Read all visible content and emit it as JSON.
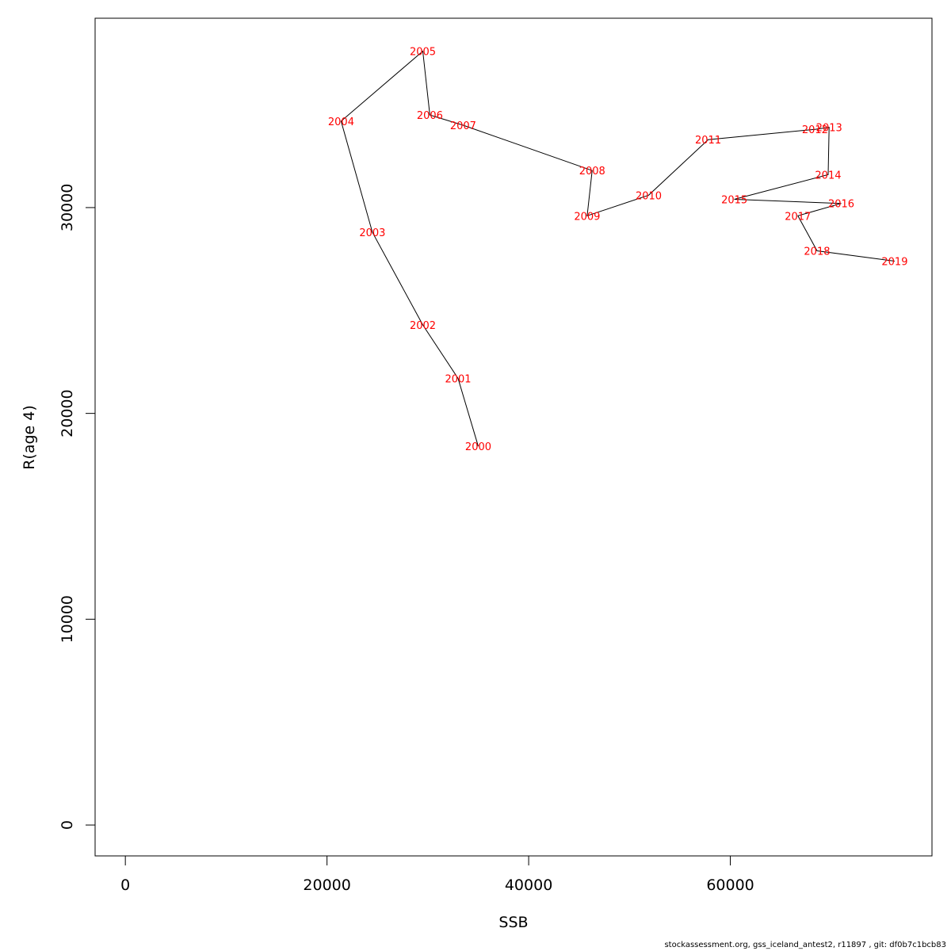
{
  "chart_data": {
    "type": "line",
    "title": "",
    "xlabel": "SSB",
    "ylabel": "R(age 4)",
    "xlim": [
      -3000,
      80000
    ],
    "ylim": [
      -1500,
      39200
    ],
    "x_ticks": [
      0,
      20000,
      40000,
      60000
    ],
    "x_tick_labels": [
      "0",
      "20000",
      "40000",
      "60000"
    ],
    "y_ticks": [
      0,
      10000,
      20000,
      30000
    ],
    "y_tick_labels": [
      "0",
      "10000",
      "20000",
      "30000"
    ],
    "grid": false,
    "legend": "none",
    "line_color": "#000000",
    "label_color": "#ff0000",
    "points": [
      {
        "label": "2000",
        "x": 35000,
        "y": 18400
      },
      {
        "label": "2001",
        "x": 33000,
        "y": 21700
      },
      {
        "label": "2002",
        "x": 29500,
        "y": 24300
      },
      {
        "label": "2003",
        "x": 24500,
        "y": 28800
      },
      {
        "label": "2004",
        "x": 21400,
        "y": 34200
      },
      {
        "label": "2005",
        "x": 29500,
        "y": 37600
      },
      {
        "label": "2006",
        "x": 30200,
        "y": 34500
      },
      {
        "label": "2007",
        "x": 33500,
        "y": 34000
      },
      {
        "label": "2008",
        "x": 46300,
        "y": 31800
      },
      {
        "label": "2009",
        "x": 45800,
        "y": 29600
      },
      {
        "label": "2010",
        "x": 51900,
        "y": 30600
      },
      {
        "label": "2011",
        "x": 57800,
        "y": 33300
      },
      {
        "label": "2012",
        "x": 68400,
        "y": 33800
      },
      {
        "label": "2013",
        "x": 69800,
        "y": 33900
      },
      {
        "label": "2014",
        "x": 69700,
        "y": 31600
      },
      {
        "label": "2015",
        "x": 60400,
        "y": 30400
      },
      {
        "label": "2016",
        "x": 71000,
        "y": 30200
      },
      {
        "label": "2017",
        "x": 66700,
        "y": 29600
      },
      {
        "label": "2018",
        "x": 68600,
        "y": 27900
      },
      {
        "label": "2019",
        "x": 76300,
        "y": 27400
      }
    ]
  },
  "footer": "stockassessment.org, gss_iceland_antest2, r11897 , git: df0b7c1bcb83"
}
